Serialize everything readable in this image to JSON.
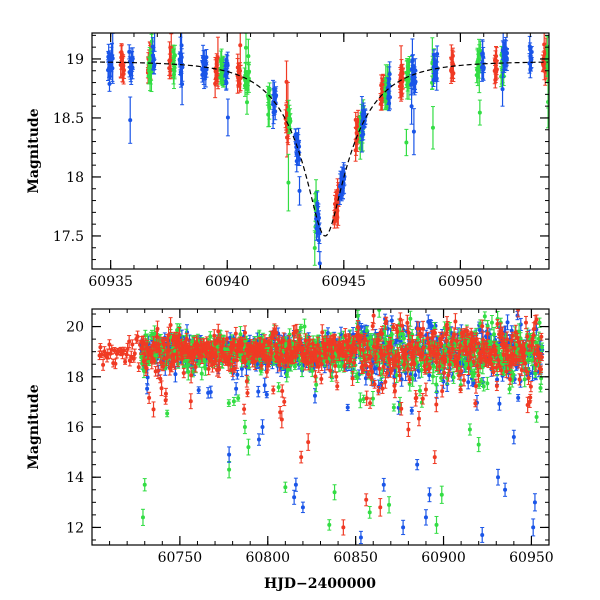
{
  "chart_data": [
    {
      "id": "top",
      "type": "scatter",
      "title": "",
      "xlabel": "",
      "ylabel": "Magnitude",
      "xlim": [
        60934.2,
        60953.8
      ],
      "ylim": [
        19.22,
        17.22
      ],
      "y_inverted": true,
      "xticks": [
        60935,
        60940,
        60945,
        60950
      ],
      "yticks": [
        17.5,
        18,
        18.5,
        19
      ],
      "ytick_labels": [
        "17.5",
        "18",
        "18.5",
        "19"
      ],
      "model_curve": {
        "name": "Microlensing model",
        "color": "#000000",
        "peak_t": 60944.2,
        "baseline_mag": 18.98,
        "peak_mag": 17.5,
        "tE": 2.4
      },
      "series": [
        {
          "name": "blue",
          "color": "#1a55e8"
        },
        {
          "name": "green",
          "color": "#33dd44"
        },
        {
          "name": "red",
          "color": "#f03a24"
        }
      ]
    },
    {
      "id": "bottom",
      "type": "scatter",
      "title": "",
      "xlabel": "HJD−2400000",
      "ylabel": "Magnitude",
      "xlim": [
        60700,
        60960
      ],
      "ylim": [
        20.7,
        11.3
      ],
      "y_inverted": true,
      "xticks": [
        60750,
        60800,
        60850,
        60900,
        60950
      ],
      "yticks": [
        12,
        14,
        16,
        18,
        20
      ],
      "series": [
        {
          "name": "blue",
          "color": "#1a55e8"
        },
        {
          "name": "green",
          "color": "#33dd44"
        },
        {
          "name": "red",
          "color": "#f03a24"
        }
      ],
      "outliers": [
        {
          "series": "green",
          "x": 60729,
          "y": 12.4
        },
        {
          "series": "green",
          "x": 60730,
          "y": 13.7
        },
        {
          "series": "red",
          "x": 60735,
          "y": 16.7
        },
        {
          "series": "green",
          "x": 60778,
          "y": 14.3
        },
        {
          "series": "blue",
          "x": 60778,
          "y": 14.9
        },
        {
          "series": "green",
          "x": 60787,
          "y": 16.0
        },
        {
          "series": "green",
          "x": 60789,
          "y": 15.2
        },
        {
          "series": "blue",
          "x": 60795,
          "y": 15.5
        },
        {
          "series": "blue",
          "x": 60797,
          "y": 16.0
        },
        {
          "series": "red",
          "x": 60808,
          "y": 16.3
        },
        {
          "series": "green",
          "x": 60810,
          "y": 13.6
        },
        {
          "series": "blue",
          "x": 60815,
          "y": 13.2
        },
        {
          "series": "blue",
          "x": 60816,
          "y": 13.7
        },
        {
          "series": "red",
          "x": 60819,
          "y": 14.8
        },
        {
          "series": "blue",
          "x": 60820,
          "y": 12.8
        },
        {
          "series": "red",
          "x": 60823,
          "y": 15.4
        },
        {
          "series": "green",
          "x": 60835,
          "y": 12.1
        },
        {
          "series": "green",
          "x": 60838,
          "y": 13.4
        },
        {
          "series": "red",
          "x": 60843,
          "y": 12.0
        },
        {
          "series": "blue",
          "x": 60853,
          "y": 11.6
        },
        {
          "series": "red",
          "x": 60856,
          "y": 13.1
        },
        {
          "series": "green",
          "x": 60858,
          "y": 12.6
        },
        {
          "series": "red",
          "x": 60864,
          "y": 12.8
        },
        {
          "series": "blue",
          "x": 60866,
          "y": 13.7
        },
        {
          "series": "green",
          "x": 60869,
          "y": 12.9
        },
        {
          "series": "blue",
          "x": 60877,
          "y": 12.0
        },
        {
          "series": "red",
          "x": 60880,
          "y": 15.9
        },
        {
          "series": "blue",
          "x": 60885,
          "y": 14.5
        },
        {
          "series": "blue",
          "x": 60890,
          "y": 12.4
        },
        {
          "series": "blue",
          "x": 60892,
          "y": 13.3
        },
        {
          "series": "red",
          "x": 60895,
          "y": 14.8
        },
        {
          "series": "green",
          "x": 60896,
          "y": 12.1
        },
        {
          "series": "green",
          "x": 60899,
          "y": 13.3
        },
        {
          "series": "green",
          "x": 60915,
          "y": 15.9
        },
        {
          "series": "green",
          "x": 60920,
          "y": 15.3
        },
        {
          "series": "blue",
          "x": 60922,
          "y": 11.7
        },
        {
          "series": "blue",
          "x": 60931,
          "y": 14.0
        },
        {
          "series": "blue",
          "x": 60935,
          "y": 13.5
        },
        {
          "series": "blue",
          "x": 60940,
          "y": 15.6
        },
        {
          "series": "blue",
          "x": 60951,
          "y": 12.0
        },
        {
          "series": "blue",
          "x": 60952,
          "y": 13.0
        }
      ]
    }
  ]
}
